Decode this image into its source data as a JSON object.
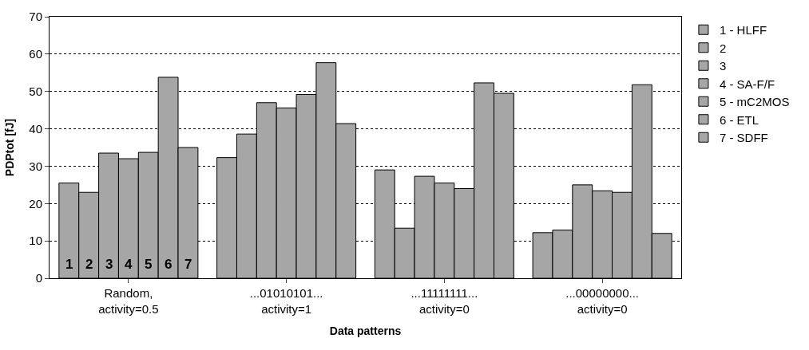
{
  "chart_data": {
    "type": "bar",
    "xlabel": "Data patterns",
    "ylabel": "PDPtot [fJ]",
    "categories": [
      "Random,\nactivity=0.5",
      "...01010101...\nactivity=1",
      "...11111111...\nactivity=0",
      "...00000000...\nactivity=0"
    ],
    "series": [
      {
        "name": "1 - HLFF",
        "color": "#a6a6a6",
        "values": [
          25.5,
          32.3,
          29,
          12.2
        ]
      },
      {
        "name": "2",
        "color": "#a6a6a6",
        "values": [
          23,
          38.6,
          13.4,
          12.9
        ]
      },
      {
        "name": "3",
        "color": "#a6a6a6",
        "values": [
          33.5,
          47,
          27.3,
          25
        ]
      },
      {
        "name": "4 - SA-F/F",
        "color": "#a6a6a6",
        "values": [
          32,
          45.6,
          25.5,
          23.4
        ]
      },
      {
        "name": "5 - mC2MOS",
        "color": "#a6a6a6",
        "values": [
          33.7,
          49.2,
          24,
          23
        ]
      },
      {
        "name": "6 - ETL",
        "color": "#a6a6a6",
        "values": [
          53.8,
          57.7,
          52.3,
          51.8
        ]
      },
      {
        "name": "7 - SDFF",
        "color": "#a6a6a6",
        "values": [
          35,
          41.4,
          49.5,
          12
        ]
      }
    ],
    "annotations": [
      "1",
      "2",
      "3",
      "4",
      "5",
      "6",
      "7"
    ],
    "ylim": [
      0,
      70
    ],
    "yticks": [
      0,
      10,
      20,
      30,
      40,
      50,
      60,
      70
    ],
    "grid": "y",
    "legend": "right"
  }
}
